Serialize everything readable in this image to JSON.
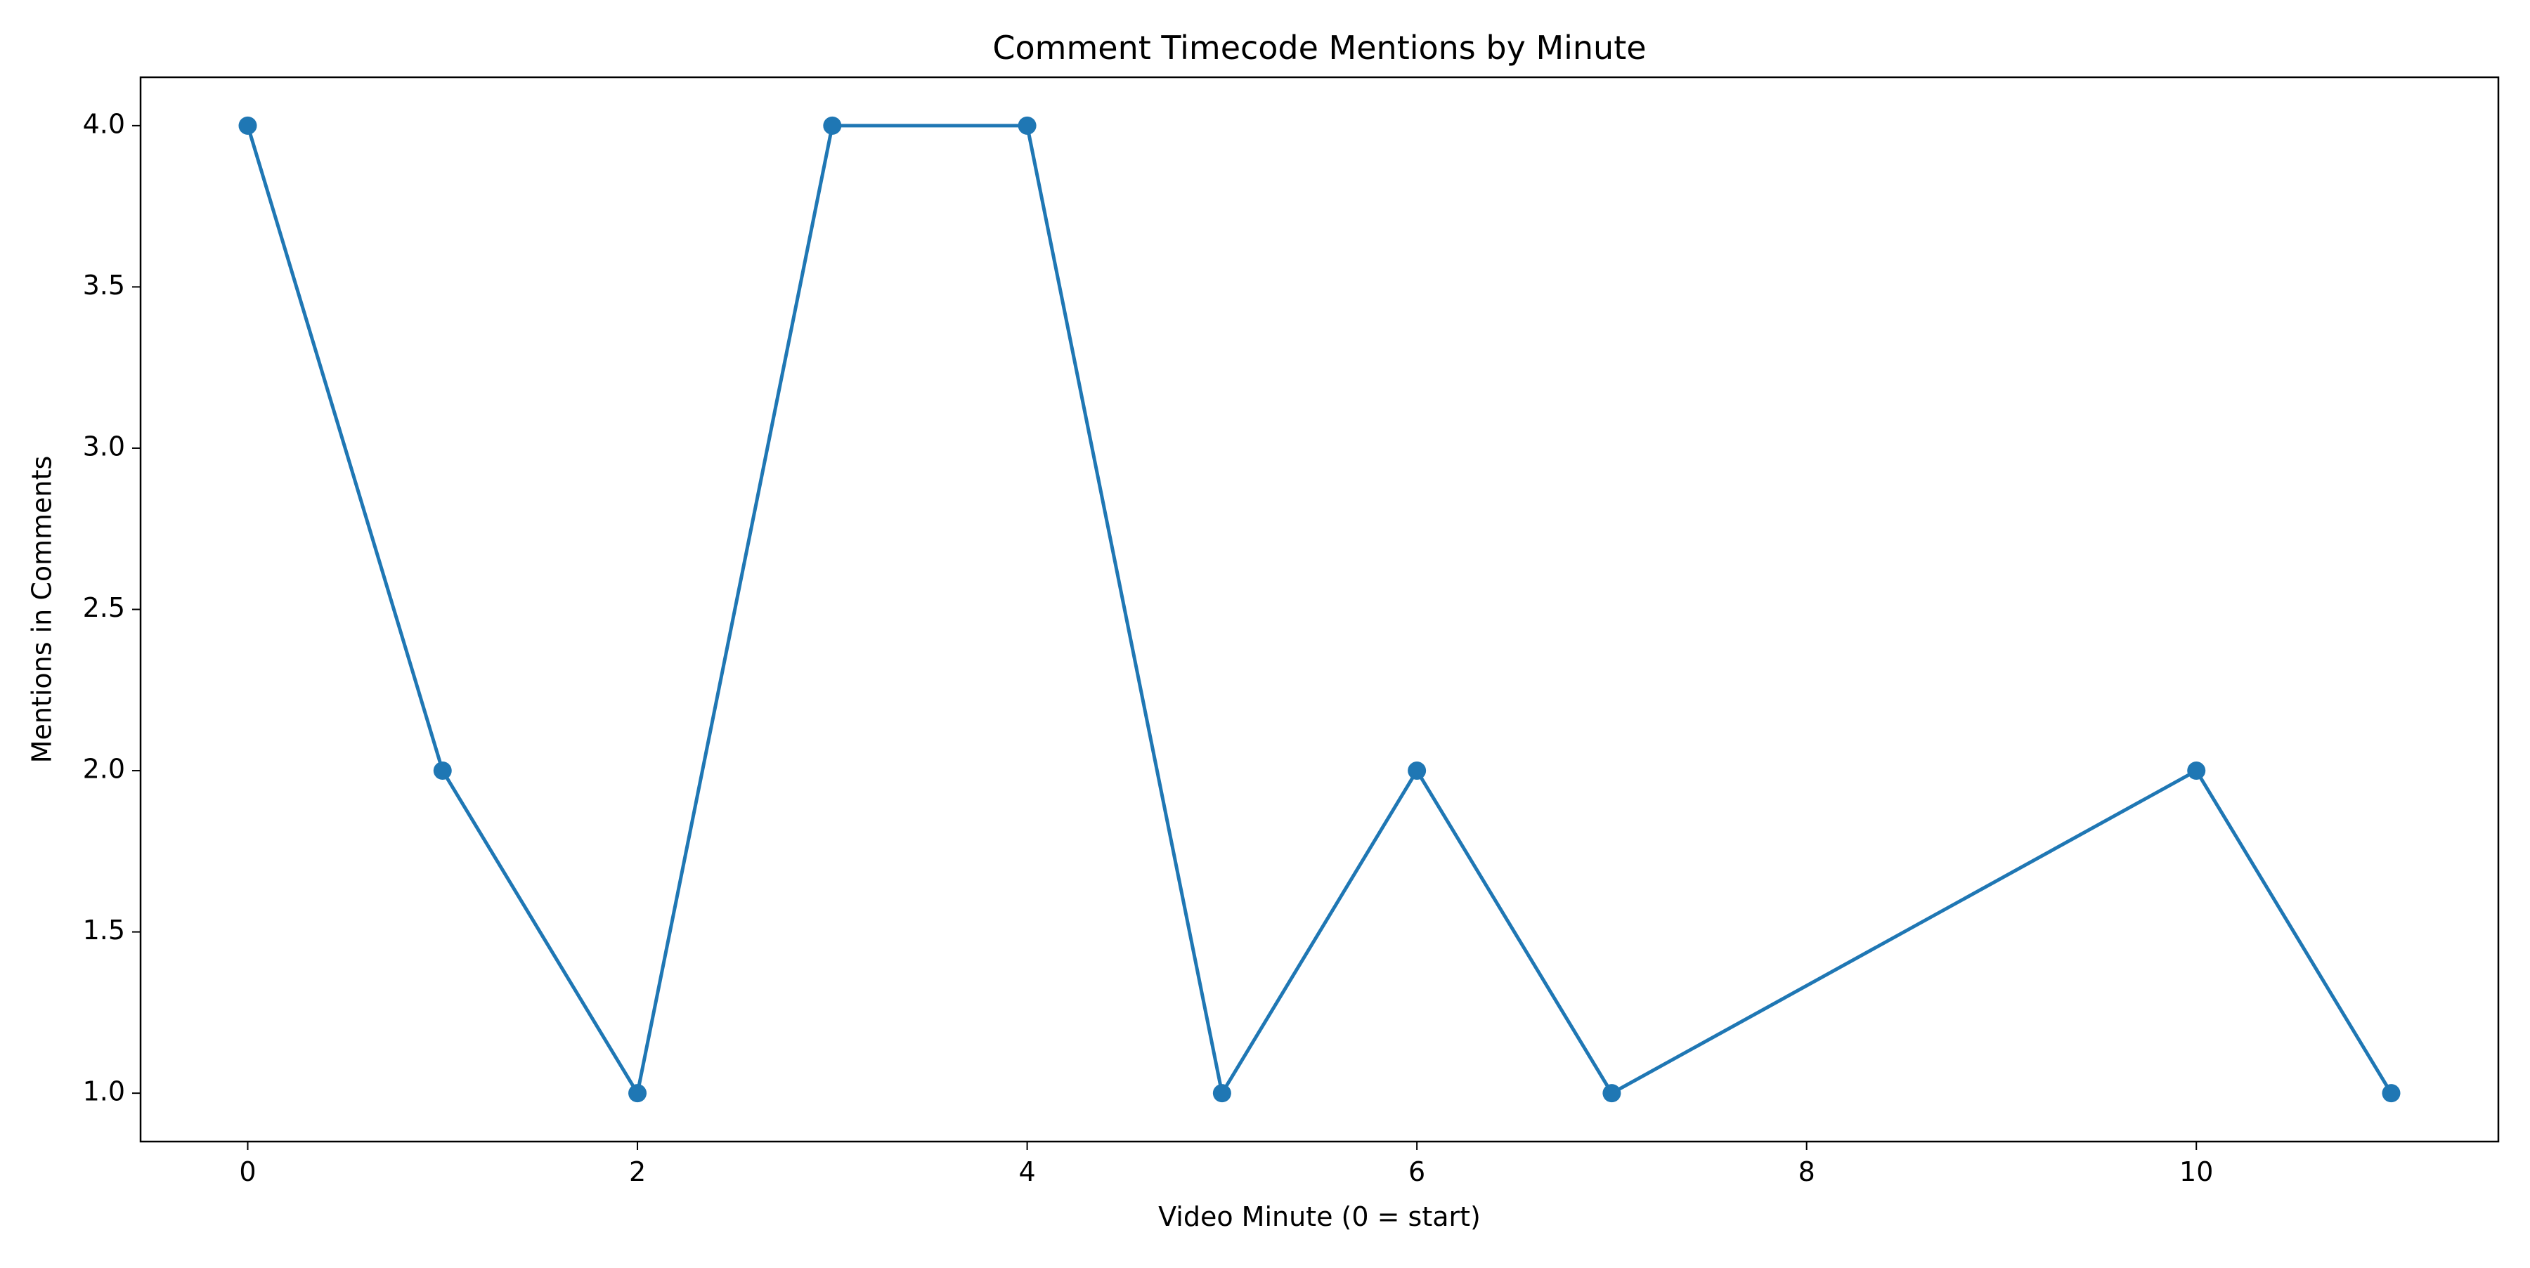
{
  "chart_data": {
    "type": "line",
    "title": "Comment Timecode Mentions by Minute",
    "xlabel": "Video Minute (0 = start)",
    "ylabel": "Mentions in Comments",
    "xlim": [
      -0.55,
      11.55
    ],
    "ylim": [
      0.85,
      4.15
    ],
    "xticks": [
      0,
      2,
      4,
      6,
      8,
      10
    ],
    "xtick_labels": [
      "0",
      "2",
      "4",
      "6",
      "8",
      "10"
    ],
    "yticks": [
      1.0,
      1.5,
      2.0,
      2.5,
      3.0,
      3.5,
      4.0
    ],
    "ytick_labels": [
      "1.0",
      "1.5",
      "2.0",
      "2.5",
      "3.0",
      "3.5",
      "4.0"
    ],
    "grid": false,
    "legend": "none",
    "series": [
      {
        "color": "#1f77b4",
        "marker": "circle",
        "x": [
          0,
          1,
          2,
          3,
          4,
          5,
          6,
          7,
          10,
          11
        ],
        "y": [
          4,
          2,
          1,
          4,
          4,
          1,
          2,
          1,
          2,
          1
        ]
      }
    ]
  }
}
